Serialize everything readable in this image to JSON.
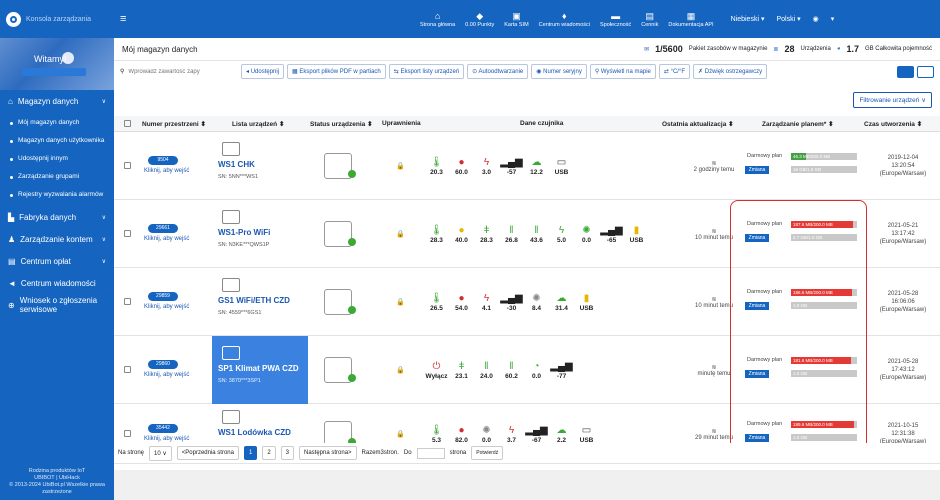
{
  "topbar": {
    "title": "Konsola zarządzania",
    "nav": [
      {
        "icon": "home-icon",
        "label": "Strona główna"
      },
      {
        "icon": "points-icon",
        "label": "0.00 Punkty"
      },
      {
        "icon": "sim-icon",
        "label": "Karta SIM"
      },
      {
        "icon": "bell-icon",
        "label": "Centrum wiadomości"
      },
      {
        "icon": "community-icon",
        "label": "Społeczność"
      },
      {
        "icon": "price-icon",
        "label": "Cennik"
      },
      {
        "icon": "api-icon",
        "label": "Dokumentacja API"
      }
    ],
    "user": "Niebieski",
    "language": "Polski"
  },
  "sidebar": {
    "welcome": "Witamy!",
    "items": [
      {
        "label": "Magazyn danych"
      },
      {
        "label": "Mój magazyn danych"
      },
      {
        "label": "Magazyn danych użytkownika"
      },
      {
        "label": "Udostępnij innym"
      },
      {
        "label": "Zarządzanie grupami"
      },
      {
        "label": "Rejestry wyzwalania alarmów"
      },
      {
        "label": "Fabryka danych"
      },
      {
        "label": "Zarządzanie kontem"
      },
      {
        "label": "Centrum opłat"
      },
      {
        "label": "Centrum wiadomości"
      },
      {
        "label": "Wniosek o zgłoszenia serwisowe"
      }
    ],
    "footer": [
      "Rodzina produktów IoT",
      "UBIBOT | UbiHack",
      "© 2013-2024 UbiBot.pl Wszelkie prawa zastrzeżone"
    ]
  },
  "header": {
    "title": "Mój magazyn danych",
    "packages": "1/5600",
    "packages_label": "Pakiet zasobów w magazynie",
    "devices": "28",
    "devices_label": "Urządzenia",
    "storage": "1.7",
    "storage_label": "GB Całkowita pojemność"
  },
  "toolbar": {
    "search_placeholder": "Wprowadź zawartość zapy",
    "buttons": [
      "Udostępnij",
      "Eksport plików PDF w partiach",
      "Eksport listy urządzeń",
      "Autoodtwarzanie",
      "Numer seryjny",
      "Wyświetl na mapie",
      "°C/°F",
      "Dźwięk ostrzegawczy"
    ],
    "filter": "Filtrowanie urządzeń"
  },
  "columns": [
    "Numer przestrzeni",
    "Lista urządzeń",
    "Status urządzenia",
    "Uprawnienia",
    "Dane czujnika",
    "Ostatnia aktualizacja",
    "Zarządzanie planem*",
    "Czas utworzenia"
  ],
  "rows": [
    {
      "num": "9504",
      "link": "Kliknij, aby wejść",
      "name": "WS1 CHK",
      "sn": "SN: 5NN***WS1",
      "sensors": [
        {
          "i": "thermometer-icon",
          "c": "#3aa935",
          "v": "20.3"
        },
        {
          "i": "drop-icon",
          "c": "#d32f2f",
          "v": "60.0"
        },
        {
          "i": "bolt-icon",
          "c": "#d32f2f",
          "v": "3.0"
        },
        {
          "i": "signal-icon",
          "c": "#222",
          "v": "-57"
        },
        {
          "i": "cloud-icon",
          "c": "#3aa935",
          "v": "12.2"
        },
        {
          "i": "usb-icon",
          "c": "#444",
          "v": "USB"
        }
      ],
      "update": "2 godziny temu",
      "plan": "Darmowy plan",
      "used": "46.3 MB/200.0 MB",
      "extra": "16 GB/1.0 GB",
      "used_frac": 0.23,
      "created": [
        "2019-12-04",
        "13:20:54",
        "(Europe/Warsaw)"
      ],
      "warn": false
    },
    {
      "num": "29661",
      "link": "Kliknij, aby wejść",
      "name": "WS1-Pro WiFi",
      "sn": "SN: N3KE***QWS1P",
      "sensors": [
        {
          "i": "thermometer-icon",
          "c": "#3aa935",
          "v": "28.3"
        },
        {
          "i": "drop-icon",
          "c": "#e6b800",
          "v": "40.0"
        },
        {
          "i": "temp-probe-icon",
          "c": "#3aa935",
          "v": "28.3"
        },
        {
          "i": "probe-icon",
          "c": "#3aa935",
          "v": "26.8"
        },
        {
          "i": "probe-icon",
          "c": "#3aa935",
          "v": "43.6"
        },
        {
          "i": "bolt-icon",
          "c": "#3aa935",
          "v": "5.0"
        },
        {
          "i": "sun-icon",
          "c": "#3aa935",
          "v": "0.0"
        },
        {
          "i": "signal-icon",
          "c": "#222",
          "v": "-65"
        },
        {
          "i": "battery-icon",
          "c": "#e6b800",
          "v": "USB"
        }
      ],
      "update": "10 minut temu",
      "plan": "Darmowy plan",
      "used": "187.6 MB/200.0 MB",
      "extra": "2.7 GB/1.0 GB",
      "used_frac": 0.94,
      "created": [
        "2021-05-21",
        "13:17:42",
        "(Europe/Warsaw)"
      ],
      "warn": true
    },
    {
      "num": "29859",
      "link": "Kliknij, aby wejść",
      "name": "GS1 WiFi/ETH CZD",
      "sn": "SN: 4559***6GS1",
      "sensors": [
        {
          "i": "thermometer-icon",
          "c": "#3aa935",
          "v": "26.5"
        },
        {
          "i": "drop-icon",
          "c": "#d32f2f",
          "v": "54.0"
        },
        {
          "i": "bolt-icon",
          "c": "#d32f2f",
          "v": "4.1"
        },
        {
          "i": "signal-icon",
          "c": "#222",
          "v": "-30"
        },
        {
          "i": "sun-icon",
          "c": "#888",
          "v": "8.4"
        },
        {
          "i": "cloud-icon",
          "c": "#3aa935",
          "v": "31.4"
        },
        {
          "i": "battery-icon",
          "c": "#e6b800",
          "v": "USB"
        }
      ],
      "update": "10 minut temu",
      "plan": "Darmowy plan",
      "used": "186.6 MB/200.0 MB",
      "extra": "1.0 GB",
      "used_frac": 0.93,
      "created": [
        "2021-05-28",
        "16:06:06",
        "(Europe/Warsaw)"
      ],
      "warn": true
    },
    {
      "num": "29860",
      "link": "Kliknij, aby wejść",
      "name": "SP1 Klimat PWA CZD",
      "sn": "SN: 3870***3SP1",
      "sensors": [
        {
          "i": "power-icon",
          "c": "#d32f2f",
          "v": "Wyłącz"
        },
        {
          "i": "temp-probe-icon",
          "c": "#3aa935",
          "v": "23.1"
        },
        {
          "i": "probe-icon",
          "c": "#3aa935",
          "v": "24.0"
        },
        {
          "i": "probe-icon",
          "c": "#3aa935",
          "v": "60.2"
        },
        {
          "i": "gauge-icon",
          "c": "#3aa935",
          "v": "0.0"
        },
        {
          "i": "signal-icon",
          "c": "#222",
          "v": "-77"
        }
      ],
      "update": "minutę temu",
      "plan": "Darmowy plan",
      "used": "181.6 MB/200.0 MB",
      "extra": "1.0 GB",
      "used_frac": 0.91,
      "created": [
        "2021-05-28",
        "17:43:12",
        "(Europe/Warsaw)"
      ],
      "warn": true,
      "selected": true
    },
    {
      "num": "35442",
      "link": "Kliknij, aby wejść",
      "name": "WS1 Lodówka CZD",
      "sn": "",
      "sensors": [
        {
          "i": "thermometer-icon",
          "c": "#3aa935",
          "v": "5.3"
        },
        {
          "i": "drop-icon",
          "c": "#d32f2f",
          "v": "82.0"
        },
        {
          "i": "sun-icon",
          "c": "#888",
          "v": "0.0"
        },
        {
          "i": "bolt-icon",
          "c": "#d32f2f",
          "v": "3.7"
        },
        {
          "i": "signal-icon",
          "c": "#222",
          "v": "-67"
        },
        {
          "i": "cloud-icon",
          "c": "#3aa935",
          "v": "2.2"
        },
        {
          "i": "usb-icon",
          "c": "#444",
          "v": "USB"
        }
      ],
      "update": "29 minut temu",
      "plan": "Darmowy plan",
      "used": "189.6 MB/200.0 MB",
      "extra": "1.0 GB",
      "used_frac": 0.95,
      "created": [
        "2021-10-15",
        "12:31:38",
        "(Europe/Warsaw)"
      ],
      "warn": true
    }
  ],
  "change_label": "Zmiana",
  "pagination": {
    "per_page_label": "Na stronę",
    "per_page": "10",
    "prev": "<Poprzednia strona",
    "pages": [
      "1",
      "2",
      "3"
    ],
    "next": "Następna strona>",
    "total": "Razem3stron.",
    "goto": "Do",
    "goto_suffix": "strona",
    "confirm": "Potwierdź"
  }
}
